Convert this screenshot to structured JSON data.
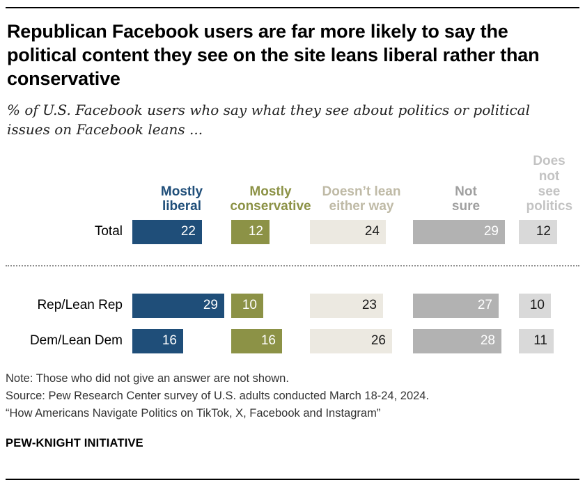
{
  "title": "Republican Facebook users are far more likely to say the political content they see on the site leans liberal rather than conservative",
  "subtitle": "% of U.S. Facebook users who say what they see about politics or political issues on Facebook leans ...",
  "chart_data": {
    "type": "bar",
    "orientation": "horizontal",
    "unit": "% of U.S. Facebook users",
    "categories": [
      "Mostly liberal",
      "Mostly conservative",
      "Doesn’t lean either way",
      "Not sure",
      "Does not see politics"
    ],
    "category_colors": [
      "#1f4e79",
      "#8c9246",
      "#ece9e1",
      "#b2b2b2",
      "#d9d9d9"
    ],
    "header_colors": [
      "#1f4e79",
      "#8c9246",
      "#bfbaa6",
      "#a0a0a0",
      "#c3c3c3"
    ],
    "rows": [
      {
        "label": "Total",
        "values": [
          22,
          12,
          24,
          29,
          12
        ]
      },
      {
        "label": "Rep/Lean Rep",
        "values": [
          29,
          10,
          23,
          27,
          10
        ]
      },
      {
        "label": "Dem/Lean Dem",
        "values": [
          16,
          16,
          26,
          28,
          11
        ]
      }
    ],
    "xlim": [
      0,
      100
    ],
    "value_suffix": "",
    "legend_position": "top"
  },
  "notes": [
    "Note: Those who did not give an answer are not shown.",
    "Source: Pew Research Center survey of U.S. adults conducted March 18-24, 2024.",
    "“How Americans Navigate Politics on TikTok, X, Facebook and Instagram”"
  ],
  "footer": "PEW-KNIGHT INITIATIVE"
}
